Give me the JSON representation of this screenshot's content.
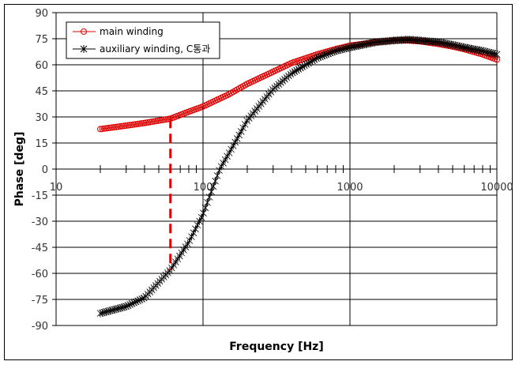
{
  "chart_data": {
    "type": "line",
    "title": "",
    "xlabel": "Frequency [Hz]",
    "ylabel": "Phase [deg]",
    "xscale": "log",
    "xlim": [
      10,
      10000
    ],
    "ylim": [
      -90,
      90
    ],
    "xticks": [
      10,
      100,
      1000,
      10000
    ],
    "xtick_labels": [
      "10",
      "100",
      "1000",
      "10000"
    ],
    "yticks": [
      90,
      75,
      60,
      45,
      30,
      15,
      0,
      -15,
      -30,
      -45,
      -60,
      -75,
      -90
    ],
    "grid": true,
    "legend_position": "upper left",
    "series": [
      {
        "name": "main winding",
        "color": "#e00000",
        "marker": "circle",
        "x": [
          20,
          30,
          40,
          60,
          80,
          100,
          150,
          200,
          300,
          400,
          600,
          800,
          1000,
          1500,
          2000,
          2500,
          3000,
          4000,
          5000,
          6000,
          8000,
          10000
        ],
        "y": [
          23,
          25,
          26.5,
          29,
          33,
          36,
          43,
          49,
          56,
          61,
          66,
          69,
          71,
          73,
          74,
          74,
          73.5,
          72,
          70.5,
          69,
          66,
          63
        ]
      },
      {
        "name": "auxiliary winding, C통과",
        "color": "#000000",
        "marker": "star",
        "x": [
          20,
          30,
          40,
          60,
          80,
          100,
          130,
          150,
          200,
          300,
          400,
          600,
          800,
          1000,
          1500,
          2000,
          2500,
          3000,
          4000,
          5000,
          6000,
          8000,
          10000
        ],
        "y": [
          -83,
          -79,
          -74,
          -58,
          -42,
          -26,
          0,
          9,
          28,
          46,
          55,
          64,
          68,
          70,
          73,
          74,
          74.5,
          74,
          73,
          71.5,
          70,
          68,
          66
        ]
      }
    ],
    "annotations": [
      {
        "type": "dashed-vertical-line",
        "color": "#e00000",
        "x": 60,
        "y_from": -58,
        "y_to": 29
      }
    ]
  },
  "legend": {
    "items": [
      {
        "label": "main winding"
      },
      {
        "label": "auxiliary winding, C통과"
      }
    ]
  }
}
